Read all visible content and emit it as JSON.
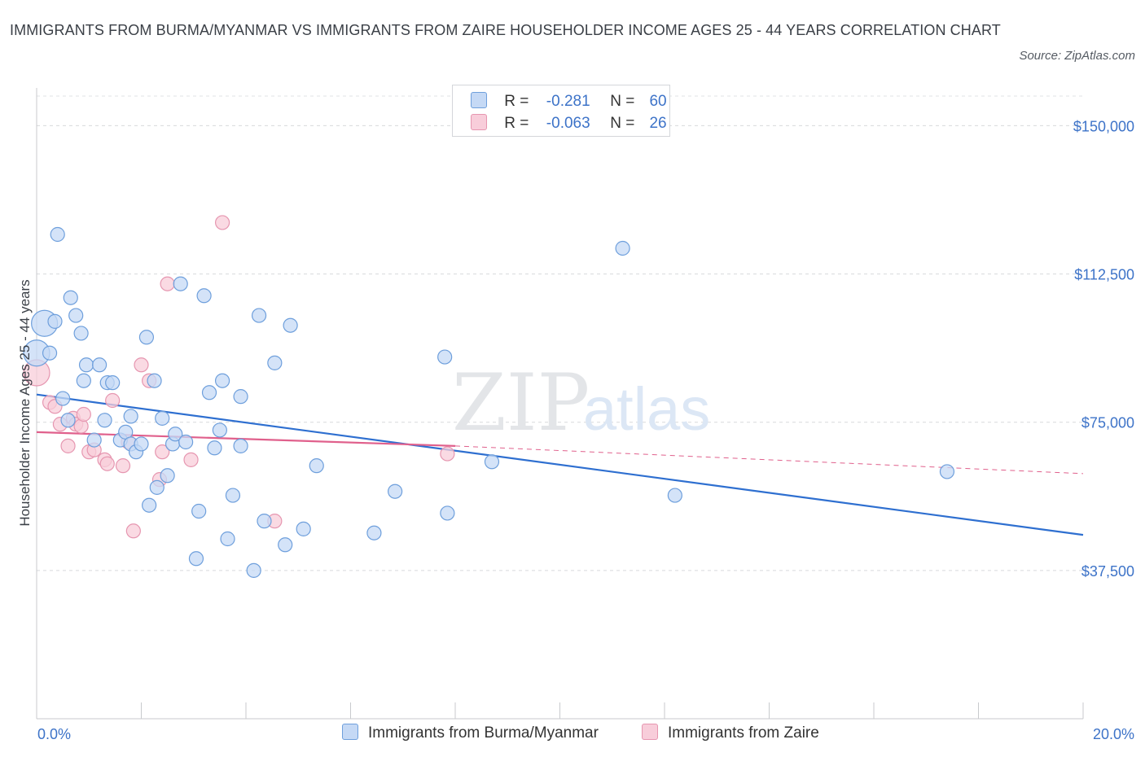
{
  "header": {
    "title": "IMMIGRANTS FROM BURMA/MYANMAR VS IMMIGRANTS FROM ZAIRE HOUSEHOLDER INCOME AGES 25 - 44 YEARS CORRELATION CHART",
    "source": "Source: ZipAtlas.com"
  },
  "watermark": "ZIPatlas",
  "legend": {
    "rows": [
      {
        "r_label": "R =",
        "r_value": "-0.281",
        "n_label": "N =",
        "n_value": "60"
      },
      {
        "r_label": "R =",
        "r_value": "-0.063",
        "n_label": "N =",
        "n_value": "26"
      }
    ]
  },
  "chart_data": {
    "type": "scatter",
    "title": "IMMIGRANTS FROM BURMA/MYANMAR VS IMMIGRANTS FROM ZAIRE HOUSEHOLDER INCOME AGES 25 - 44 YEARS CORRELATION CHART",
    "xlabel": "",
    "ylabel": "Householder Income Ages 25 - 44 years",
    "xlim": [
      0,
      20
    ],
    "ylim": [
      0,
      157500
    ],
    "x_tick_labels": [
      "0.0%",
      "20.0%"
    ],
    "y_ticks": [
      37500,
      75000,
      112500,
      150000
    ],
    "y_tick_labels": [
      "$37,500",
      "$75,000",
      "$112,500",
      "$150,000"
    ],
    "grid": true,
    "legend_position": "bottom-center",
    "colors": {
      "burma_fill": "#c5d9f5",
      "burma_stroke": "#6e9fdc",
      "burma_line": "#2e6fd0",
      "zaire_fill": "#f8cdda",
      "zaire_stroke": "#e696b0",
      "zaire_line": "#e0608c"
    },
    "series": [
      {
        "name": "Immigrants from Burma/Myanmar",
        "R": -0.281,
        "N": 60,
        "trend": {
          "x": [
            0,
            20
          ],
          "y": [
            82000,
            46500
          ]
        },
        "points": [
          {
            "x": 0.0,
            "y": 92500,
            "big": true
          },
          {
            "x": 0.15,
            "y": 100000,
            "big": true
          },
          {
            "x": 0.25,
            "y": 92500
          },
          {
            "x": 0.35,
            "y": 100500
          },
          {
            "x": 0.4,
            "y": 122500
          },
          {
            "x": 0.5,
            "y": 81000
          },
          {
            "x": 0.6,
            "y": 75500
          },
          {
            "x": 0.65,
            "y": 106500
          },
          {
            "x": 0.75,
            "y": 102000
          },
          {
            "x": 0.85,
            "y": 97500
          },
          {
            "x": 0.9,
            "y": 85500
          },
          {
            "x": 0.95,
            "y": 89500
          },
          {
            "x": 1.1,
            "y": 70500
          },
          {
            "x": 1.2,
            "y": 89500
          },
          {
            "x": 1.3,
            "y": 75500
          },
          {
            "x": 1.35,
            "y": 85000
          },
          {
            "x": 1.45,
            "y": 85000
          },
          {
            "x": 1.6,
            "y": 70500
          },
          {
            "x": 1.7,
            "y": 72500
          },
          {
            "x": 1.8,
            "y": 69500
          },
          {
            "x": 1.8,
            "y": 76500
          },
          {
            "x": 1.9,
            "y": 67500
          },
          {
            "x": 2.0,
            "y": 69500
          },
          {
            "x": 2.1,
            "y": 96500
          },
          {
            "x": 2.15,
            "y": 54000
          },
          {
            "x": 2.25,
            "y": 85500
          },
          {
            "x": 2.3,
            "y": 58500
          },
          {
            "x": 2.4,
            "y": 76000
          },
          {
            "x": 2.5,
            "y": 61500
          },
          {
            "x": 2.6,
            "y": 69500
          },
          {
            "x": 2.65,
            "y": 72000
          },
          {
            "x": 2.75,
            "y": 110000
          },
          {
            "x": 2.85,
            "y": 70000
          },
          {
            "x": 3.05,
            "y": 40500
          },
          {
            "x": 3.1,
            "y": 52500
          },
          {
            "x": 3.2,
            "y": 107000
          },
          {
            "x": 3.3,
            "y": 82500
          },
          {
            "x": 3.4,
            "y": 68500
          },
          {
            "x": 3.5,
            "y": 73000
          },
          {
            "x": 3.55,
            "y": 85500
          },
          {
            "x": 3.65,
            "y": 45500
          },
          {
            "x": 3.75,
            "y": 56500
          },
          {
            "x": 3.9,
            "y": 69000
          },
          {
            "x": 3.9,
            "y": 81500
          },
          {
            "x": 4.15,
            "y": 37500
          },
          {
            "x": 4.25,
            "y": 102000
          },
          {
            "x": 4.35,
            "y": 50000
          },
          {
            "x": 4.55,
            "y": 90000
          },
          {
            "x": 4.75,
            "y": 44000
          },
          {
            "x": 4.85,
            "y": 99500
          },
          {
            "x": 5.1,
            "y": 48000
          },
          {
            "x": 5.35,
            "y": 64000
          },
          {
            "x": 6.45,
            "y": 47000
          },
          {
            "x": 6.85,
            "y": 57500
          },
          {
            "x": 7.85,
            "y": 52000
          },
          {
            "x": 7.8,
            "y": 91500
          },
          {
            "x": 8.7,
            "y": 65000
          },
          {
            "x": 11.2,
            "y": 119000
          },
          {
            "x": 12.2,
            "y": 56500
          },
          {
            "x": 17.4,
            "y": 62500
          }
        ]
      },
      {
        "name": "Immigrants from Zaire",
        "R": -0.063,
        "N": 26,
        "trend": {
          "x": [
            0,
            8
          ],
          "y": [
            72500,
            69000
          ]
        },
        "trend_extension": {
          "x": [
            8,
            20
          ],
          "y": [
            69000,
            62000
          ]
        },
        "points": [
          {
            "x": 0.0,
            "y": 87500,
            "big": true
          },
          {
            "x": 0.25,
            "y": 80000
          },
          {
            "x": 0.35,
            "y": 79000
          },
          {
            "x": 0.45,
            "y": 74500
          },
          {
            "x": 0.6,
            "y": 69000
          },
          {
            "x": 0.7,
            "y": 76000
          },
          {
            "x": 0.75,
            "y": 74500
          },
          {
            "x": 0.85,
            "y": 74000
          },
          {
            "x": 0.9,
            "y": 77000
          },
          {
            "x": 1.0,
            "y": 67500
          },
          {
            "x": 1.1,
            "y": 68000
          },
          {
            "x": 1.3,
            "y": 65500
          },
          {
            "x": 1.35,
            "y": 64500
          },
          {
            "x": 1.45,
            "y": 80500
          },
          {
            "x": 1.65,
            "y": 64000
          },
          {
            "x": 1.75,
            "y": 70000
          },
          {
            "x": 1.85,
            "y": 47500
          },
          {
            "x": 2.0,
            "y": 89500
          },
          {
            "x": 2.15,
            "y": 85500
          },
          {
            "x": 2.35,
            "y": 60500
          },
          {
            "x": 2.4,
            "y": 67500
          },
          {
            "x": 2.5,
            "y": 110000
          },
          {
            "x": 2.95,
            "y": 65500
          },
          {
            "x": 3.55,
            "y": 125500
          },
          {
            "x": 4.55,
            "y": 50000
          },
          {
            "x": 7.85,
            "y": 67000
          }
        ]
      }
    ]
  },
  "bottom_legend": {
    "items": [
      "Immigrants from Burma/Myanmar",
      "Immigrants from Zaire"
    ]
  }
}
